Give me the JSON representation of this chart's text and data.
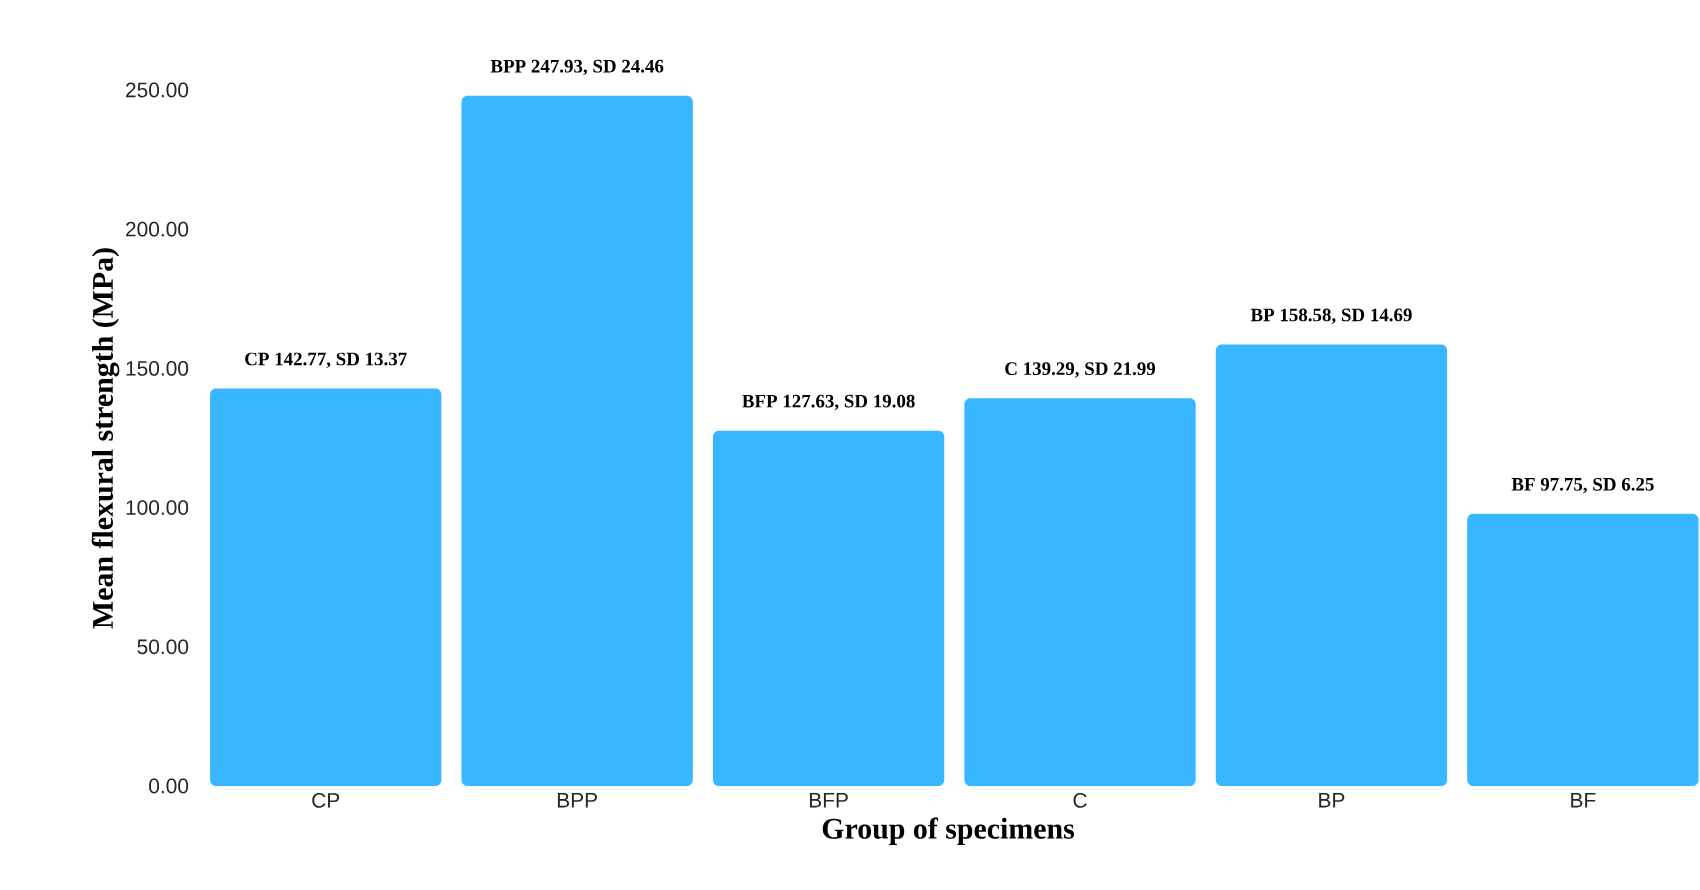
{
  "chart_data": {
    "type": "bar",
    "xlabel": "Group of specimens",
    "ylabel": "Mean flexural strength (MPa)",
    "categories": [
      "CP",
      "BPP",
      "BFP",
      "C",
      "BP",
      "BF"
    ],
    "values": [
      142.77,
      247.93,
      127.63,
      139.29,
      158.58,
      97.75
    ],
    "value_labels": [
      "CP 142.77, SD 13.37",
      "BPP 247.93, SD 24.46",
      "BFP 127.63, SD 19.08",
      "C 139.29, SD 21.99",
      "BP 158.58, SD 14.69",
      "BF 97.75, SD 6.25"
    ],
    "color": "#38b6ff",
    "ylim": [
      0,
      250
    ],
    "yticks": [
      {
        "value": 0,
        "label": "0.00"
      },
      {
        "value": 50,
        "label": "50.00"
      },
      {
        "value": 100,
        "label": "100.00"
      },
      {
        "value": 150,
        "label": "150.00"
      },
      {
        "value": 200,
        "label": "200.00"
      },
      {
        "value": 250,
        "label": "250.00"
      }
    ],
    "grid": false
  }
}
